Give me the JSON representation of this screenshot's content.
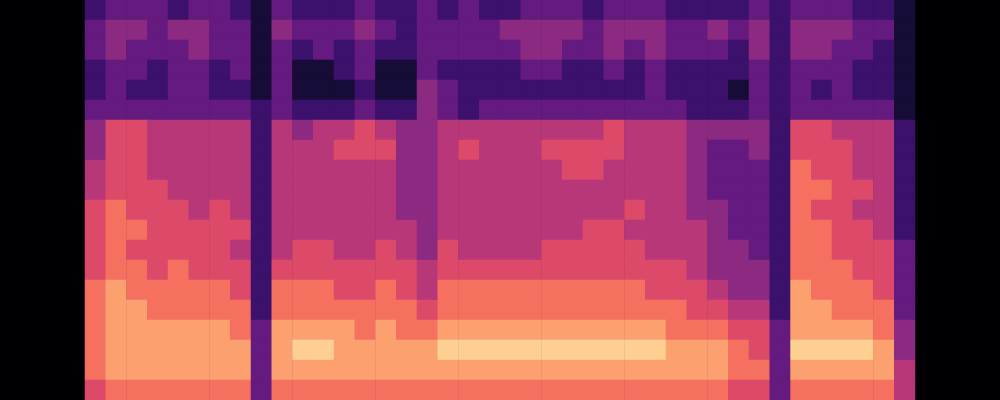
{
  "chart_data": {
    "type": "heatmap",
    "color": "magma",
    "grid": false,
    "tick_labels": false,
    "zlim": [
      0,
      10
    ],
    "cells": [
      [
        2,
        3,
        3,
        3,
        2,
        3,
        3,
        2,
        1,
        3,
        2,
        2,
        2,
        3,
        2,
        2,
        3,
        2,
        3,
        2,
        2,
        3,
        3,
        3,
        2,
        3,
        3,
        3,
        2,
        2,
        2,
        2,
        3,
        2,
        3,
        3,
        3,
        2,
        2,
        1
      ],
      [
        3,
        4,
        4,
        3,
        4,
        4,
        3,
        3,
        1,
        4,
        3,
        3,
        3,
        4,
        3,
        2,
        3,
        3,
        3,
        3,
        4,
        4,
        4,
        4,
        3,
        4,
        4,
        4,
        3,
        3,
        4,
        3,
        4,
        2,
        4,
        4,
        4,
        3,
        3,
        1
      ],
      [
        3,
        4,
        3,
        3,
        3,
        4,
        3,
        3,
        1,
        3,
        2,
        3,
        2,
        3,
        2,
        2,
        3,
        3,
        3,
        3,
        3,
        4,
        4,
        3,
        3,
        4,
        3,
        4,
        3,
        3,
        3,
        2,
        4,
        2,
        4,
        4,
        3,
        3,
        2,
        1
      ],
      [
        2,
        3,
        3,
        2,
        3,
        3,
        2,
        3,
        1,
        3,
        1,
        1,
        2,
        3,
        1,
        1,
        3,
        2,
        2,
        2,
        2,
        3,
        3,
        2,
        2,
        3,
        2,
        3,
        2,
        2,
        2,
        2,
        3,
        2,
        3,
        3,
        3,
        2,
        2,
        1
      ],
      [
        2,
        3,
        2,
        2,
        3,
        3,
        2,
        2,
        1,
        3,
        1,
        1,
        1,
        2,
        1,
        1,
        4,
        3,
        2,
        2,
        2,
        2,
        2,
        2,
        2,
        2,
        2,
        3,
        2,
        2,
        2,
        1,
        3,
        2,
        3,
        2,
        3,
        2,
        2,
        1
      ],
      [
        3,
        3,
        3,
        3,
        3,
        3,
        3,
        3,
        2,
        3,
        2,
        2,
        2,
        3,
        2,
        2,
        4,
        3,
        2,
        3,
        3,
        3,
        3,
        3,
        3,
        3,
        3,
        3,
        3,
        2,
        2,
        2,
        3,
        2,
        3,
        3,
        3,
        3,
        3,
        1
      ],
      [
        4,
        6,
        6,
        5,
        5,
        5,
        5,
        5,
        2,
        5,
        4,
        5,
        5,
        6,
        5,
        4,
        4,
        5,
        5,
        5,
        5,
        5,
        5,
        5,
        5,
        6,
        5,
        5,
        5,
        4,
        4,
        4,
        4,
        2,
        6,
        6,
        5,
        5,
        5,
        2
      ],
      [
        4,
        6,
        6,
        5,
        5,
        5,
        5,
        5,
        2,
        5,
        5,
        5,
        6,
        6,
        6,
        4,
        4,
        5,
        6,
        5,
        5,
        5,
        6,
        6,
        6,
        6,
        5,
        5,
        5,
        4,
        3,
        3,
        4,
        2,
        6,
        6,
        6,
        5,
        5,
        2
      ],
      [
        5,
        6,
        6,
        5,
        5,
        5,
        5,
        5,
        2,
        5,
        5,
        5,
        5,
        5,
        5,
        4,
        4,
        5,
        5,
        5,
        5,
        5,
        5,
        6,
        6,
        5,
        5,
        5,
        5,
        4,
        3,
        3,
        3,
        2,
        7,
        6,
        6,
        5,
        5,
        2
      ],
      [
        5,
        6,
        6,
        6,
        5,
        5,
        5,
        5,
        2,
        5,
        5,
        5,
        5,
        5,
        5,
        4,
        4,
        5,
        5,
        5,
        5,
        5,
        5,
        5,
        5,
        5,
        5,
        5,
        5,
        4,
        3,
        3,
        3,
        2,
        7,
        7,
        6,
        6,
        5,
        2
      ],
      [
        6,
        7,
        6,
        6,
        6,
        5,
        6,
        5,
        2,
        5,
        5,
        5,
        5,
        5,
        5,
        4,
        4,
        5,
        5,
        5,
        5,
        5,
        5,
        5,
        5,
        5,
        6,
        5,
        5,
        4,
        4,
        3,
        3,
        2,
        7,
        6,
        6,
        5,
        5,
        2
      ],
      [
        6,
        7,
        7,
        6,
        6,
        6,
        6,
        6,
        2,
        5,
        5,
        5,
        5,
        5,
        5,
        5,
        4,
        5,
        5,
        5,
        5,
        5,
        5,
        5,
        6,
        6,
        5,
        5,
        5,
        5,
        4,
        3,
        3,
        2,
        7,
        7,
        6,
        6,
        5,
        2
      ],
      [
        6,
        7,
        6,
        6,
        6,
        6,
        6,
        5,
        2,
        5,
        6,
        6,
        5,
        5,
        6,
        5,
        4,
        6,
        5,
        5,
        5,
        5,
        6,
        6,
        6,
        6,
        6,
        5,
        5,
        5,
        4,
        4,
        3,
        2,
        7,
        7,
        6,
        6,
        6,
        3
      ],
      [
        6,
        7,
        7,
        6,
        7,
        6,
        6,
        6,
        2,
        6,
        6,
        6,
        6,
        6,
        6,
        6,
        5,
        6,
        6,
        6,
        6,
        6,
        6,
        6,
        6,
        6,
        6,
        6,
        6,
        5,
        4,
        4,
        4,
        2,
        7,
        7,
        7,
        6,
        6,
        3
      ],
      [
        7,
        8,
        7,
        7,
        7,
        7,
        7,
        6,
        2,
        7,
        7,
        7,
        6,
        6,
        7,
        6,
        5,
        7,
        7,
        7,
        7,
        7,
        7,
        7,
        7,
        7,
        7,
        6,
        6,
        6,
        5,
        4,
        4,
        2,
        8,
        7,
        7,
        7,
        6,
        3
      ],
      [
        7,
        8,
        8,
        7,
        7,
        7,
        7,
        7,
        2,
        7,
        7,
        7,
        7,
        7,
        7,
        7,
        6,
        7,
        7,
        7,
        7,
        7,
        7,
        7,
        7,
        7,
        7,
        7,
        7,
        6,
        6,
        5,
        5,
        2,
        8,
        8,
        7,
        7,
        7,
        3
      ],
      [
        7,
        8,
        8,
        8,
        8,
        8,
        8,
        7,
        3,
        8,
        8,
        8,
        8,
        7,
        8,
        7,
        7,
        8,
        8,
        8,
        8,
        8,
        8,
        8,
        8,
        8,
        8,
        8,
        7,
        7,
        7,
        6,
        6,
        3,
        8,
        8,
        8,
        8,
        7,
        4
      ],
      [
        7,
        8,
        8,
        8,
        8,
        8,
        8,
        8,
        3,
        8,
        9,
        9,
        8,
        8,
        8,
        8,
        8,
        9,
        9,
        9,
        9,
        9,
        9,
        9,
        9,
        9,
        9,
        9,
        8,
        8,
        8,
        7,
        6,
        3,
        9,
        9,
        9,
        9,
        8,
        4
      ],
      [
        7,
        8,
        8,
        8,
        8,
        8,
        8,
        8,
        3,
        8,
        8,
        8,
        8,
        8,
        8,
        8,
        8,
        8,
        8,
        8,
        8,
        8,
        8,
        8,
        8,
        8,
        8,
        8,
        8,
        8,
        8,
        7,
        7,
        3,
        8,
        8,
        8,
        8,
        8,
        5
      ],
      [
        6,
        7,
        7,
        7,
        7,
        7,
        7,
        7,
        3,
        7,
        7,
        7,
        7,
        7,
        7,
        7,
        7,
        7,
        7,
        7,
        7,
        7,
        7,
        7,
        7,
        7,
        7,
        7,
        7,
        7,
        7,
        6,
        6,
        3,
        7,
        7,
        7,
        7,
        7,
        5
      ]
    ]
  }
}
